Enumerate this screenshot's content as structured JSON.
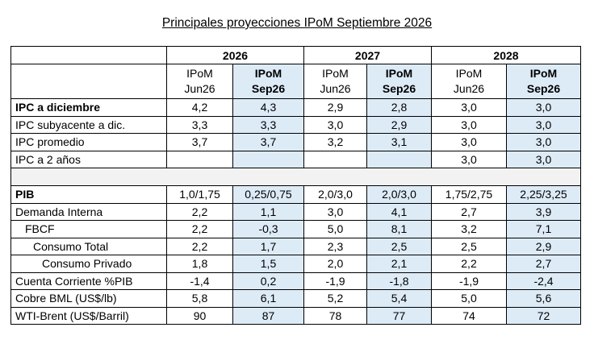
{
  "title": "Principales proyecciones IPoM Septiembre 2026",
  "years": [
    "2026",
    "2027",
    "2028"
  ],
  "subheaders": {
    "old_line1": "IPoM",
    "old_line2": "Jun26",
    "new_line1": "IPoM",
    "new_line2": "Sep26"
  },
  "rows_ipc": [
    {
      "label": "IPC a diciembre",
      "bold": true,
      "values": [
        "4,2",
        "4,3",
        "2,9",
        "2,8",
        "3,0",
        "3,0"
      ]
    },
    {
      "label": "IPC subyacente a dic.",
      "bold": false,
      "values": [
        "3,3",
        "3,3",
        "3,0",
        "2,9",
        "3,0",
        "3,0"
      ]
    },
    {
      "label": "IPC promedio",
      "bold": false,
      "values": [
        "3,7",
        "3,7",
        "3,2",
        "3,1",
        "3,0",
        "3,0"
      ]
    },
    {
      "label": "IPC a 2 años",
      "bold": false,
      "values": [
        "",
        "",
        "",
        "",
        "3,0",
        "3,0"
      ]
    }
  ],
  "rows_activity": [
    {
      "label": "PIB",
      "bold": true,
      "indent": 0,
      "values": [
        "1,0/1,75",
        "0,25/0,75",
        "2,0/3,0",
        "2,0/3,0",
        "1,75/2,75",
        "2,25/3,25"
      ]
    },
    {
      "label": "Demanda Interna",
      "bold": false,
      "indent": 0,
      "values": [
        "2,2",
        "1,1",
        "3,0",
        "4,1",
        "2,7",
        "3,9"
      ]
    },
    {
      "label": "FBCF",
      "bold": false,
      "indent": 1,
      "values": [
        "2,2",
        "-0,3",
        "5,0",
        "8,1",
        "3,2",
        "7,1"
      ]
    },
    {
      "label": "Consumo Total",
      "bold": false,
      "indent": 2,
      "values": [
        "2,2",
        "1,7",
        "2,3",
        "2,5",
        "2,5",
        "2,9"
      ]
    },
    {
      "label": "Consumo Privado",
      "bold": false,
      "indent": 3,
      "values": [
        "1,8",
        "1,5",
        "2,0",
        "2,1",
        "2,2",
        "2,7"
      ]
    },
    {
      "label": "Cuenta Corriente %PIB",
      "bold": false,
      "indent": 0,
      "values": [
        "-1,4",
        "0,2",
        "-1,9",
        "-1,8",
        "-1,9",
        "-2,4"
      ]
    },
    {
      "label": "Cobre BML (US$/lb)",
      "bold": false,
      "indent": 0,
      "values": [
        "5,8",
        "6,1",
        "5,2",
        "5,4",
        "5,0",
        "5,6"
      ]
    },
    {
      "label": "WTI-Brent (US$/Barril)",
      "bold": false,
      "indent": 0,
      "values": [
        "90",
        "87",
        "78",
        "77",
        "74",
        "72"
      ]
    }
  ],
  "colors": {
    "highlight": "#ddebf7",
    "separator": "#f2f2f2"
  }
}
